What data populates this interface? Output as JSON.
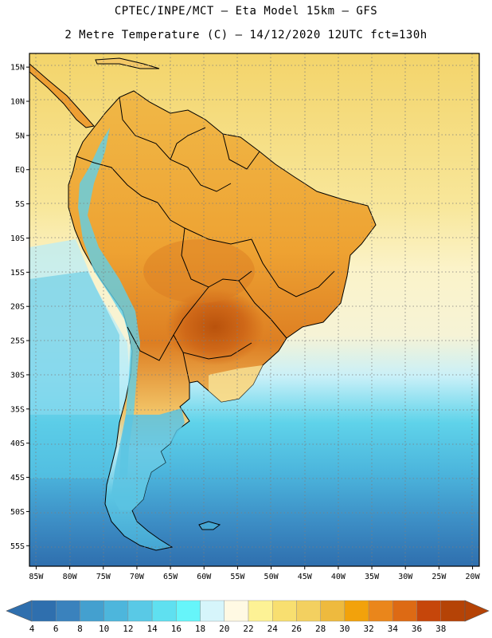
{
  "header": {
    "line1": "CPTEC/INPE/MCT –  Eta Model 15km – GFS",
    "line2": "2 Metre Temperature (C) – 14/12/2020 12UTC fct=130h"
  },
  "axes": {
    "lat_labels": [
      "15N",
      "10N",
      "5N",
      "EQ",
      "5S",
      "10S",
      "15S",
      "20S",
      "25S",
      "30S",
      "35S",
      "40S",
      "45S",
      "50S",
      "55S"
    ],
    "lat_values": [
      15,
      10,
      5,
      0,
      -5,
      -10,
      -15,
      -20,
      -25,
      -30,
      -35,
      -40,
      -45,
      -50,
      -55
    ],
    "lon_labels": [
      "85W",
      "80W",
      "75W",
      "70W",
      "65W",
      "60W",
      "55W",
      "50W",
      "45W",
      "40W",
      "35W",
      "30W",
      "25W",
      "20W"
    ],
    "lon_values": [
      -85,
      -80,
      -75,
      -70,
      -65,
      -60,
      -55,
      -50,
      -45,
      -40,
      -35,
      -30,
      -25,
      -20
    ],
    "lat_range": [
      -58,
      17
    ],
    "lon_range": [
      -86,
      -19
    ]
  },
  "colorbar": {
    "labels": [
      "4",
      "6",
      "8",
      "10",
      "12",
      "14",
      "16",
      "18",
      "20",
      "22",
      "24",
      "26",
      "28",
      "30",
      "32",
      "34",
      "36",
      "38"
    ],
    "colors": [
      "#2f6fae",
      "#3a82bd",
      "#44a0cf",
      "#4db6dc",
      "#59c9e6",
      "#5fe0f0",
      "#66f5fa",
      "#d6f5fb",
      "#fff9e3",
      "#fdf295",
      "#f8df70",
      "#f3d060",
      "#eeba3e",
      "#f2a20b",
      "#ea861b",
      "#dd6a14",
      "#c6460a",
      "#b54306"
    ]
  },
  "colors": {
    "ocean_tropical": "#f3d469",
    "ocean_south": "#2f6fae",
    "land_hot": "#e99a30",
    "land_hottest": "#c75f12",
    "patagonia": "#5bc3e2"
  }
}
